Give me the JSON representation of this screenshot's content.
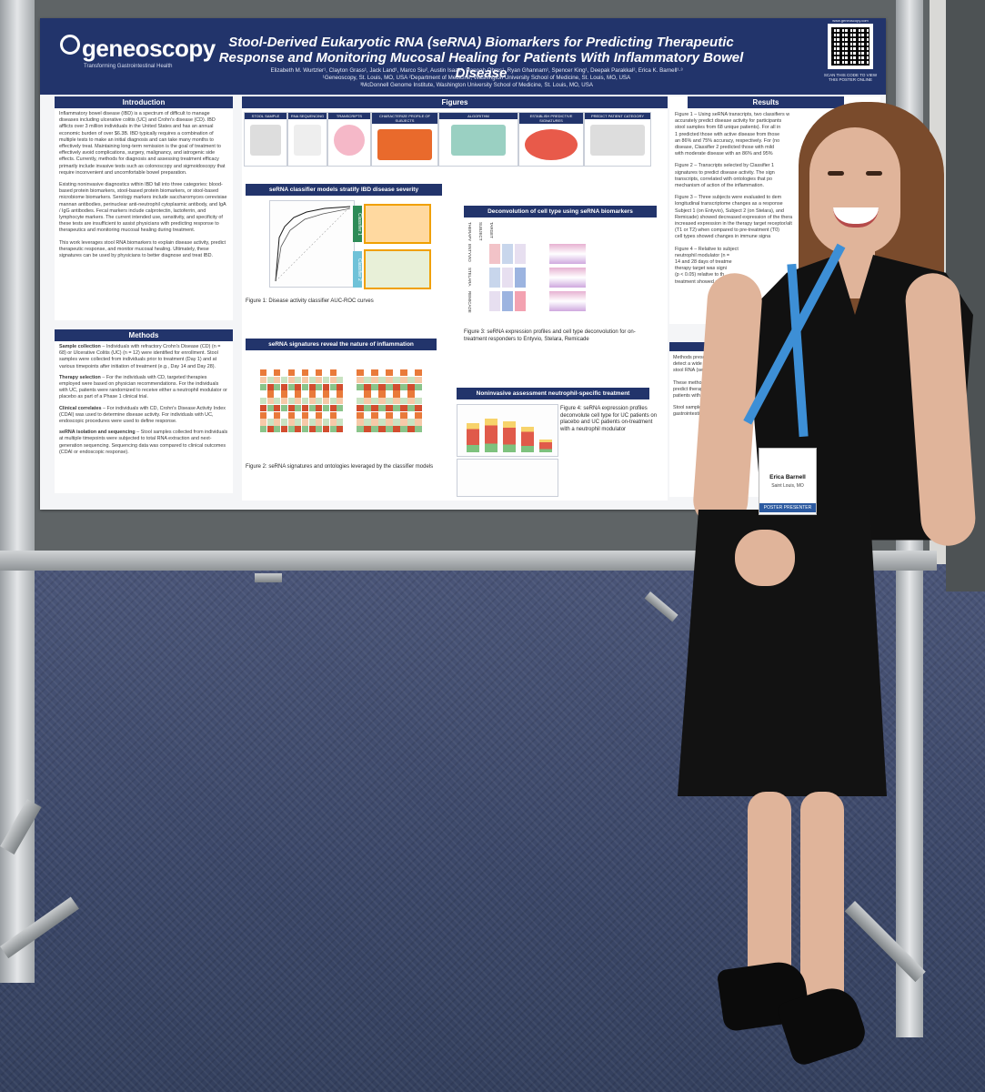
{
  "poster": {
    "logo": "geneoscopy",
    "logo_tagline": "Transforming Gastrointestinal Health",
    "title": "Stool-Derived Eukaryotic RNA (seRNA) Biomarkers for Predicting Therapeutic Response and Monitoring Mucosal Healing for Patients With Inflammatory Bowel Disease",
    "authors": "Elizabeth M. Wurtzler¹, Clayton Grass¹, Jack Land¹, Marco Siu², Austin Isaak², Hannah Ohms¹, Ryan Ghannam¹, Spencer King¹, Deepak Parakkal², Erica K. Barnell¹·³",
    "affiliation_1": "¹Geneoscopy, St. Louis, MO, USA ²Department of Medicine, Washington University School of Medicine, St. Louis, MO, USA",
    "affiliation_2": "³McDonnell Genome Institute, Washington University School of Medicine, St. Louis, MO, USA",
    "qr_caption": "SCAN THIS CODE TO VIEW THIS POSTER ONLINE",
    "qr_url": "www.geneoscopy.com",
    "sections": {
      "introduction": "Introduction",
      "methods": "Methods",
      "figures": "Figures",
      "results": "Results"
    },
    "intro_p1": "Inflammatory bowel disease (IBD) is a spectrum of difficult to manage diseases including ulcerative colitis (UC) and Crohn's disease (CD). IBD afflicts over 3 million individuals in the United States and has an annual economic burden of over $6.3B. IBD typically requires a combination of multiple tests to make an initial diagnosis and can take many months to effectively treat. Maintaining long-term remission is the goal of treatment to effectively avoid complications, surgery, malignancy, and iatrogenic side effects. Currently, methods for diagnosis and assessing treatment efficacy primarily include invasive tests such as colonoscopy and sigmoidoscopy that require inconvenient and uncomfortable bowel preparation.",
    "intro_p2": "Existing noninvasive diagnostics within IBD fall into three categories: blood-based protein biomarkers, stool-based protein biomarkers, or stool-based microbiome biomarkers. Serology markers include saccharomyces cerevisiae mannan antibodies, perinuclear anti-neutrophil cytoplasmic antibody, and IgA / IgG antibodies. Fecal markers include calprotectin, lactoferrin, and lymphocyte markers. The current intended use, sensitivity, and specificity of these tests are insufficient to assist physicians with predicting response to therapeutics and monitoring mucosal healing during treatment.",
    "intro_p3": "This work leverages stool RNA biomarkers to explain disease activity, predict therapeutic response, and monitor mucosal healing. Ultimately, these signatures can be used by physicians to better diagnose and treat IBD.",
    "methods_items": [
      {
        "head": "Sample collection",
        "text": " – Individuals with refractory Crohn's Disease (CD) (n = 68) or Ulcerative Colitis (UC) (n = 12) were identified for enrollment. Stool samples were collected from individuals prior to treatment (Day 1) and at various timepoints after initiation of treatment (e.g., Day 14 and Day 28)."
      },
      {
        "head": "Therapy selection",
        "text": " – For the individuals with CD, targeted therapies employed were based on physician recommendations. For the individuals with UC, patients were randomized to receive either a neutrophil modulator or placebo as part of a Phase 1 clinical trial."
      },
      {
        "head": "Clinical correlates",
        "text": " – For individuals with CD, Crohn's Disease Activity Index (CDAI) was used to determine disease activity. For individuals with UC, endoscopic procedures were used to define response."
      },
      {
        "head": "seRNA isolation and sequencing",
        "text": " – Stool samples collected from individuals at multiple timepoints were subjected to total RNA extraction and next-generation sequencing. Sequencing data was compared to clinical outcomes (CDAI or endoscopic response)."
      }
    ],
    "workflow": [
      "STOOL SAMPLE",
      "RNA SEQUENCING",
      "TRANSCRIPTS",
      "CHARACTERIZE PROFILE OF SUBJECTS",
      "ALGORITHM",
      "ESTABLISH PREDICTIVE SIGNATURES",
      "PREDICT PATIENT CATEGORY"
    ],
    "fig_headers": {
      "classifier": "seRNA classifier models stratify IBD disease severity",
      "deconvolution": "Deconvolution of cell type using seRNA biomarkers",
      "signatures": "seRNA signatures reveal the nature of inflammation",
      "neutrophil": "Noninvasive assessment neutrophil-specific treatment"
    },
    "captions": {
      "fig1": "Figure 1: Disease activity classifier AUC-ROC curves",
      "fig2": "Figure 2: seRNA signatures and ontologies leveraged by the classifier models",
      "fig3": "Figure 3: seRNA expression profiles and cell type deconvolution for on-treatment responders to Entyvio, Stelara, Remicade",
      "fig4": "Figure 4: seRNA expression profiles deconvolute cell type for UC patients on placebo and UC patients on-treatment with a neutrophil modulator"
    },
    "results_lines": [
      "Figure 1 – Using seRNA transcripts, two classifiers w",
      "accurately predict disease activity for participants",
      "stool samples from 68 unique patients). For all in",
      "1 predicted those with active disease from those",
      "an 86% and 75% accuracy, respectively. For (no",
      "disease, Classifier 2 predicted those with mild",
      "with moderate disease with an 86% and 95%",
      "",
      "Figure 2 – Transcripts selected by Classifier 1",
      "signatures to predict disease activity. The sign",
      "transcripts, correlated with ontologies that po",
      "mechanism of action of the inflammation.",
      "",
      "Figure 3 – Three subjects were evaluated to dem",
      "longitudinal transcriptome changes as a response",
      "Subject 1 (on Entyvio), Subject 2 (on Stelara), and",
      "Remicade) showed decreased expression of the thera",
      "increased expression in the therapy target receptor/alt",
      "(T1 or T2) when compared to pre-treatment (T0)",
      "cell types showed changes in immune signa",
      "",
      "Figure 4 – Relative to subject",
      "neutrophil modulator (n =",
      "14 and 28 days of treatme",
      "therapy target was signi",
      "(p < 0.05) relative to th",
      "treatment showed ex"
    ],
    "conclusion_lines": [
      "Methods presented",
      "detect a wide arra",
      "stool RNA (seRNA)",
      "",
      "These methods",
      "predict therape",
      "patients with I",
      "",
      "Stool samples",
      "gastrointestin"
    ],
    "classifier_labels": [
      "Classifier 1",
      "Classifier 2"
    ],
    "fig3_row_labels": [
      "ENTYVIO",
      "STELARA",
      "REMICADE"
    ],
    "fig3_col_labels": [
      "THERAPY",
      "SUBJECT",
      "TARGET"
    ]
  },
  "badge": {
    "name": "Erica Barnell",
    "city": "Saint Louis, MO",
    "strip": "POSTER PRESENTER"
  },
  "colors": {
    "banner": "#22346b",
    "lanyard": "#3d8fd6",
    "dress": "#121212",
    "carpet": "#3f4a6c"
  }
}
